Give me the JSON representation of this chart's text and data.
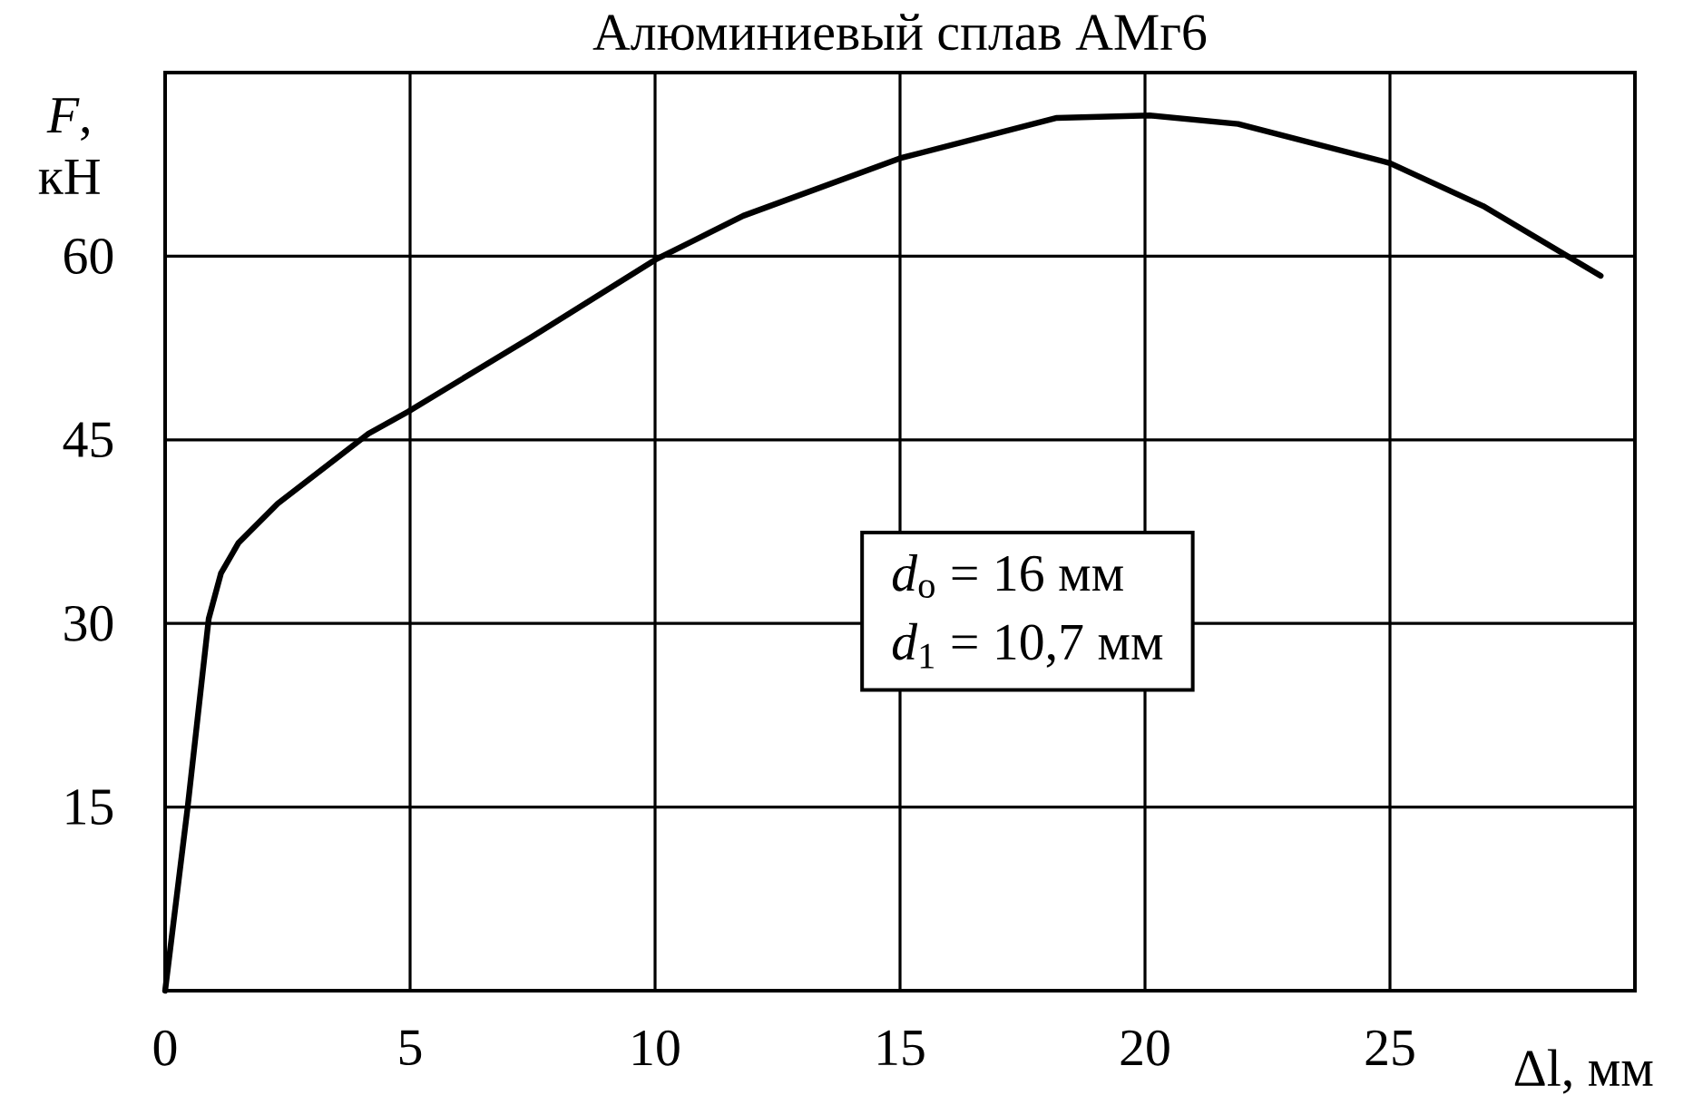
{
  "chart_data": {
    "type": "line",
    "title": "Алюминиевый сплав АМг6",
    "xlabel": "Δl, мм",
    "ylabel": "*F*, кН",
    "xlim": [
      0,
      30
    ],
    "ylim": [
      0,
      75
    ],
    "xticks": [
      0,
      5,
      10,
      15,
      20,
      25
    ],
    "yticks": [
      15,
      30,
      45,
      60
    ],
    "grid": true,
    "marker": "none",
    "line_style": "solid",
    "annotations": [
      "*d*$_{о}$ = 16 мм",
      "*d*$_{1}$ = 10,7 мм"
    ],
    "series": [
      {
        "color": "#000000",
        "x": [
          0,
          0.46,
          0.89,
          1.14,
          1.5,
          2.3,
          4.15,
          4.96,
          7.48,
          10.0,
          11.8,
          15.0,
          18.2,
          20.1,
          21.9,
          25.0,
          26.9,
          29.3
        ],
        "values": [
          0,
          15.0,
          30.4,
          34.1,
          36.6,
          39.8,
          45.5,
          47.3,
          53.4,
          59.7,
          63.3,
          68.0,
          71.3,
          71.5,
          70.8,
          67.6,
          64.1,
          58.4
        ]
      }
    ]
  }
}
